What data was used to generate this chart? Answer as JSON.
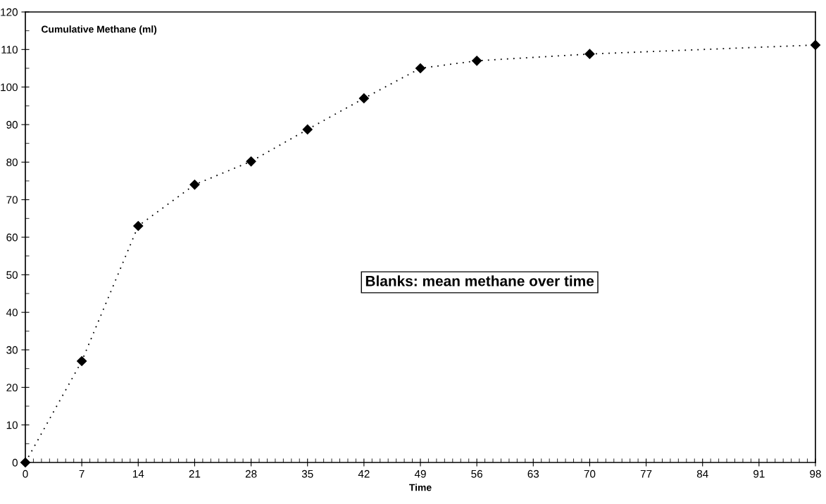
{
  "chart_data": {
    "type": "line",
    "ylabel": "Cumulative Methane (ml)",
    "xlabel": "Time",
    "annotations": [
      "Blanks: mean methane over time"
    ],
    "x": [
      0,
      7,
      14,
      21,
      28,
      35,
      42,
      49,
      56,
      70,
      98
    ],
    "series": [
      {
        "color": "#000000",
        "values": [
          0,
          27,
          63,
          74,
          80.2,
          88.7,
          97,
          105,
          107,
          108.8,
          111.2
        ]
      }
    ],
    "xlim": [
      0,
      98
    ],
    "xticks": [
      0,
      7,
      14,
      21,
      28,
      35,
      42,
      49,
      56,
      63,
      70,
      77,
      84,
      91,
      98
    ],
    "ylim": [
      0,
      120
    ],
    "yticks": [
      0,
      10,
      20,
      30,
      40,
      50,
      60,
      70,
      80,
      90,
      100,
      110,
      120
    ],
    "marker": "diamond",
    "line_style": "dotted"
  }
}
